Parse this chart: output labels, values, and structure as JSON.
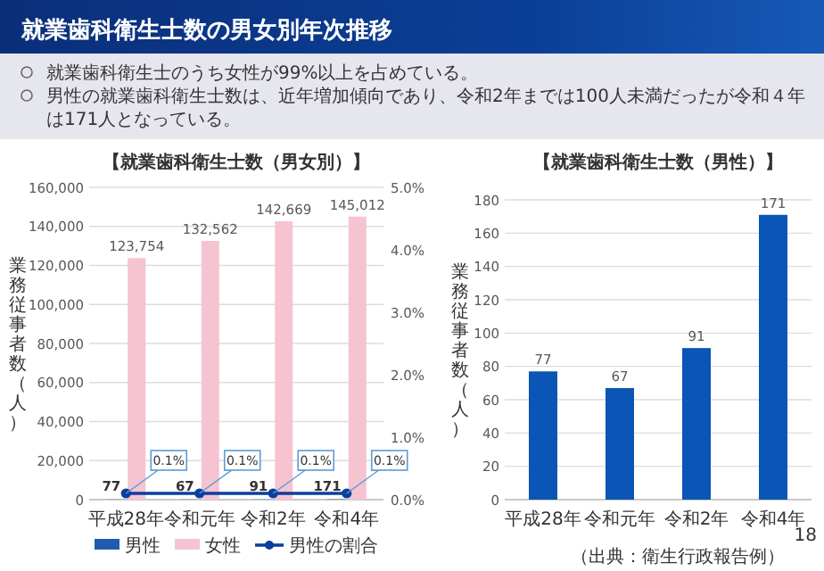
{
  "chart_data": [
    {
      "type": "bar",
      "title": "就業歯科衛生士数の男女別年次推移",
      "subtitle": "【就業歯科衛生士数（男女別）】",
      "ylabel": "業務従事者数（人）",
      "annotations": [
        "就業歯科衛生士のうち女性が99%以上を占めている。",
        "男性の就業歯科衛生士数は、近年増加傾向であり、令和2年までは100人未満だったが令和４年は171人となっている。"
      ],
      "categories": [
        "平成28年",
        "令和元年",
        "令和2年",
        "令和4年"
      ],
      "series": [
        {
          "name": "男性",
          "color": "#1f5cb0",
          "values": [
            77,
            67,
            91,
            171
          ],
          "value_labels": [
            "77",
            "67",
            "91",
            "171"
          ]
        },
        {
          "name": "女性",
          "color": "#f5c4d0",
          "values": [
            123754,
            132562,
            142669,
            145012
          ],
          "value_labels": [
            "123,754",
            "132,562",
            "142,669",
            "145,012"
          ]
        },
        {
          "name": "男性の割合",
          "type": "line",
          "axis": "y2",
          "color": "#0b3f9e",
          "marker": "circle",
          "values": [
            0.1,
            0.1,
            0.1,
            0.1
          ],
          "value_labels": [
            "0.1%",
            "0.1%",
            "0.1%",
            "0.1%"
          ]
        }
      ],
      "ylim": [
        0,
        160000
      ],
      "yticks": [
        0,
        {
          "value": 20000,
          "label": "20,000"
        },
        {
          "value": 40000,
          "label": "40,000"
        },
        {
          "value": 60000,
          "label": "60,000"
        },
        {
          "value": 80000,
          "label": "80,000"
        },
        {
          "value": 100000,
          "label": "100,000"
        },
        {
          "value": 120000,
          "label": "120,000"
        },
        {
          "value": 140000,
          "label": "140,000"
        },
        {
          "value": 160000,
          "label": "160,000"
        }
      ],
      "y2lim": [
        0,
        5
      ],
      "y2ticks": [
        {
          "value": 0,
          "label": "0.0%"
        },
        {
          "value": 1,
          "label": "1.0%"
        },
        {
          "value": 2,
          "label": "2.0%"
        },
        {
          "value": 3,
          "label": "3.0%"
        },
        {
          "value": 4,
          "label": "4.0%"
        },
        {
          "value": 5,
          "label": "5.0%"
        }
      ],
      "grid": "y",
      "legend": "bottom"
    },
    {
      "type": "bar",
      "title": "【就業歯科衛生士数（男性）】",
      "ylabel": "業務従事者数（人）",
      "annotations": [
        "（出典：衛生行政報告例）",
        "18"
      ],
      "categories": [
        "平成28年",
        "令和元年",
        "令和2年",
        "令和4年"
      ],
      "values": [
        77,
        67,
        91,
        171
      ],
      "color": "#0a55b5",
      "data_labels": true,
      "ylim": [
        0,
        180
      ],
      "yticks": [
        0,
        20,
        40,
        60,
        80,
        100,
        120,
        140,
        160,
        180
      ],
      "grid": "y"
    }
  ]
}
